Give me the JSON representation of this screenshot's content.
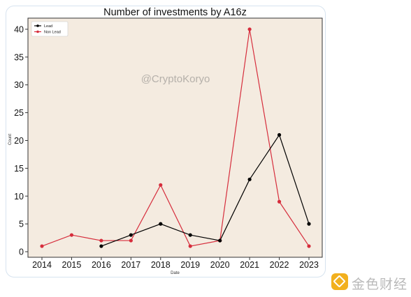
{
  "chart_data": {
    "type": "line",
    "title": "Number of investments by A16z",
    "xlabel": "Date",
    "ylabel": "Count",
    "x": [
      "2014",
      "2015",
      "2016",
      "2017",
      "2018",
      "2019",
      "2020",
      "2021",
      "2022",
      "2023"
    ],
    "ylim": [
      -1,
      42
    ],
    "yticks": [
      0,
      5,
      10,
      15,
      20,
      25,
      30,
      35,
      40
    ],
    "grid": false,
    "legend_position": "top-left",
    "series": [
      {
        "name": "Lead",
        "color": "#000000",
        "values": [
          null,
          null,
          1,
          3,
          5,
          3,
          2,
          13,
          21,
          5
        ]
      },
      {
        "name": "Non Lead",
        "color": "#d62d3c",
        "values": [
          1,
          3,
          2,
          2,
          12,
          1,
          2,
          40,
          9,
          1
        ]
      }
    ],
    "annotation": "@CryptoKoryo",
    "background_color": "#f4ebe0"
  },
  "watermark": {
    "text": "金色财经",
    "icon": "jinse-logo-icon"
  }
}
